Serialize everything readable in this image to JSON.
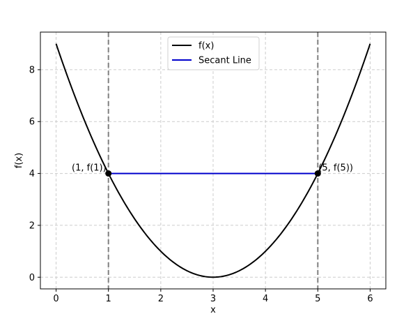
{
  "chart_data": {
    "type": "line",
    "title": "",
    "xlabel": "x",
    "ylabel": "f(x)",
    "xlim": [
      -0.3,
      6.3
    ],
    "ylim": [
      -0.45,
      9.45
    ],
    "xticks": [
      0,
      1,
      2,
      3,
      4,
      5,
      6
    ],
    "yticks": [
      0,
      2,
      4,
      6,
      8
    ],
    "xtick_labels": [
      "0",
      "1",
      "2",
      "3",
      "4",
      "5",
      "6"
    ],
    "ytick_labels": [
      "0",
      "2",
      "4",
      "6",
      "8"
    ],
    "grid": true,
    "legend_position": "top-center",
    "series": [
      {
        "name": "f(x)",
        "color": "#000000",
        "x": [
          0,
          0.25,
          0.5,
          0.75,
          1,
          1.25,
          1.5,
          1.75,
          2,
          2.25,
          2.5,
          2.75,
          3,
          3.25,
          3.5,
          3.75,
          4,
          4.25,
          4.5,
          4.75,
          5,
          5.25,
          5.5,
          5.75,
          6
        ],
        "y": [
          9,
          7.5625,
          6.25,
          5.0625,
          4,
          3.0625,
          2.25,
          1.5625,
          1,
          0.5625,
          0.25,
          0.0625,
          0,
          0.0625,
          0.25,
          0.5625,
          1,
          1.5625,
          2.25,
          3.0625,
          4,
          5.0625,
          6.25,
          7.5625,
          9
        ]
      },
      {
        "name": "Secant Line",
        "color": "#0000cc",
        "x": [
          1,
          5
        ],
        "y": [
          4,
          4
        ]
      }
    ],
    "vertical_lines": [
      {
        "x": 1,
        "color": "#808080",
        "style": "dashed"
      },
      {
        "x": 5,
        "color": "#808080",
        "style": "dashed"
      }
    ],
    "points": [
      {
        "x": 1,
        "y": 4,
        "label": "(1, f(1))"
      },
      {
        "x": 5,
        "y": 4,
        "label": "(5, f(5))"
      }
    ]
  }
}
